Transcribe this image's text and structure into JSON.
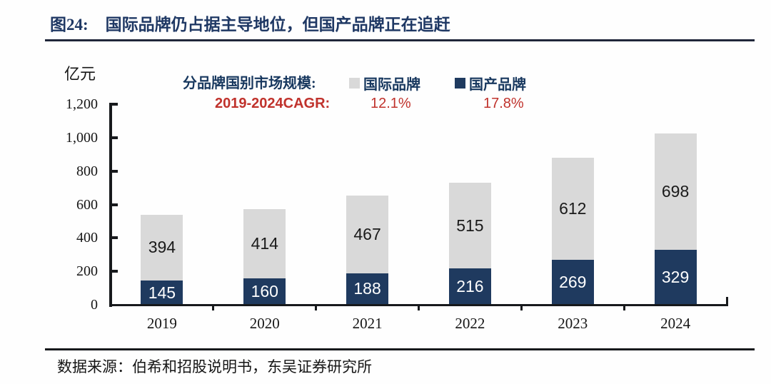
{
  "figure": {
    "number_label": "图24:",
    "title": "国际品牌仍占据主导地位，但国产品牌正在追赶"
  },
  "unit_label": "亿元",
  "legend": {
    "series_title": "分品牌国别市场规模:",
    "items": [
      {
        "key": "international",
        "label": "国际品牌",
        "color": "#d9d9d9"
      },
      {
        "key": "domestic",
        "label": "国产品牌",
        "color": "#1f3a5f"
      }
    ],
    "cagr": {
      "label": "2019-2024CAGR:",
      "values": [
        {
          "series": "国际品牌",
          "value": "12.1%"
        },
        {
          "series": "国产品牌",
          "value": "17.8%"
        }
      ]
    }
  },
  "chart_data": {
    "type": "bar",
    "stacked": true,
    "title": "分品牌国别市场规模",
    "ylabel": "亿元",
    "xlabel": "",
    "categories": [
      "2019",
      "2020",
      "2021",
      "2022",
      "2023",
      "2024"
    ],
    "series": [
      {
        "key": "domestic",
        "name": "国产品牌",
        "color": "#1f3a5f",
        "label_color": "#ffffff",
        "values": [
          145,
          160,
          188,
          216,
          269,
          329
        ]
      },
      {
        "key": "international",
        "name": "国际品牌",
        "color": "#d9d9d9",
        "label_color": "#1a1a1a",
        "values": [
          394,
          414,
          467,
          515,
          612,
          698
        ]
      }
    ],
    "totals": [
      539,
      574,
      655,
      731,
      881,
      1027
    ],
    "cagr_2019_2024": {
      "国际品牌": "12.1%",
      "国产品牌": "17.8%"
    },
    "ylim": [
      0,
      1200
    ],
    "yticks": [
      {
        "value": 0,
        "label": "0"
      },
      {
        "value": 200,
        "label": "200"
      },
      {
        "value": 400,
        "label": "400"
      },
      {
        "value": 600,
        "label": "600"
      },
      {
        "value": 800,
        "label": "800"
      },
      {
        "value": 1000,
        "label": "1,000"
      },
      {
        "value": 1200,
        "label": "1,200"
      }
    ],
    "grid": false,
    "legend_position": "top"
  },
  "source": {
    "text": "数据来源：伯希和招股说明书，东吴证券研究所"
  },
  "colors": {
    "title_navy": "#1f3864",
    "legend_navy": "#17375e",
    "bar_navy": "#1f3a5f",
    "bar_gray": "#d9d9d9",
    "accent_red": "#c0322c",
    "axis_black": "#17191c"
  }
}
